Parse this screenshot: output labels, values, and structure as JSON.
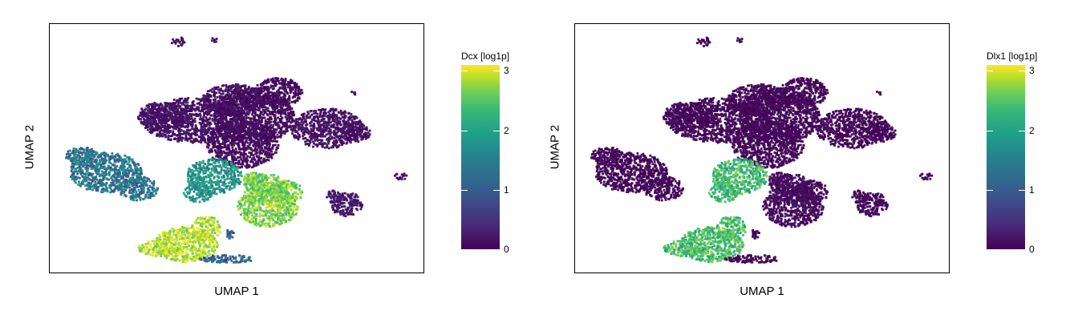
{
  "chart_data": [
    {
      "type": "scatter",
      "title": "",
      "xlabel": "UMAP 1",
      "ylabel": "UMAP 2",
      "colorbar": {
        "label": "Dcx [log1p]",
        "range": [
          0,
          3.1
        ],
        "ticks": [
          "0",
          "1",
          "2",
          "3"
        ],
        "colormap": "viridis"
      },
      "expression": {
        "c1": 1.2,
        "c2": 0.15,
        "c3": 0.1,
        "c4": 0.15,
        "c5": 1.6,
        "c6": 2.4,
        "c7": 0.2,
        "c8": 0.15,
        "c9": 2.8,
        "c10": 1.0,
        "c11": 2.5
      }
    },
    {
      "type": "scatter",
      "title": "",
      "xlabel": "UMAP 1",
      "ylabel": "UMAP 2",
      "colorbar": {
        "label": "Dlx1 [log1p]",
        "range": [
          0,
          3.1
        ],
        "ticks": [
          "0",
          "1",
          "2",
          "3"
        ],
        "colormap": "viridis"
      },
      "expression": {
        "c1": 0.05,
        "c2": 0.05,
        "c3": 0.05,
        "c4": 0.05,
        "c5": 2.1,
        "c6": 0.1,
        "c7": 0.05,
        "c8": 0.05,
        "c9": 2.2,
        "c10": 0.05,
        "c11": 0.1
      }
    }
  ]
}
